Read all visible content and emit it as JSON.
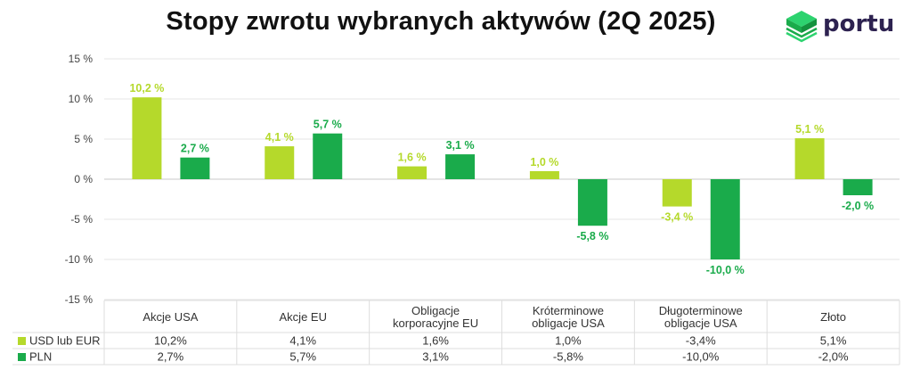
{
  "brand": {
    "name": "portu"
  },
  "chart_data": {
    "type": "bar",
    "title": "Stopy zwrotu wybranych aktywów (2Q 2025)",
    "categories": [
      "Akcje USA",
      "Akcje EU",
      "Obligacje korporacyjne EU",
      "Króterminowe obligacje USA",
      "Długoterminowe obligacje USA",
      "Złoto"
    ],
    "category_lines": [
      [
        "Akcje USA"
      ],
      [
        "Akcje EU"
      ],
      [
        "Obligacje",
        "korporacyjne EU"
      ],
      [
        "Króterminowe",
        "obligacje USA"
      ],
      [
        "Długoterminowe",
        "obligacje USA"
      ],
      [
        "Złoto"
      ]
    ],
    "series": [
      {
        "name": "USD lub EUR",
        "color": "#b5d92b",
        "values": [
          10.2,
          4.1,
          1.6,
          1.0,
          -3.4,
          5.1
        ],
        "data_labels": [
          "10,2 %",
          "4,1 %",
          "1,6 %",
          "1,0 %",
          "-3,4 %",
          "5,1 %"
        ],
        "table_values": [
          "10,2%",
          "4,1%",
          "1,6%",
          "1,0%",
          "-3,4%",
          "5,1%"
        ]
      },
      {
        "name": "PLN",
        "color": "#1aab4b",
        "values": [
          2.7,
          5.7,
          3.1,
          -5.8,
          -10.0,
          -2.0
        ],
        "data_labels": [
          "2,7 %",
          "5,7 %",
          "3,1 %",
          "-5,8 %",
          "-10,0 %",
          "-2,0 %"
        ],
        "table_values": [
          "2,7%",
          "5,7%",
          "3,1%",
          "-5,8%",
          "-10,0%",
          "-2,0%"
        ]
      }
    ],
    "ylim": [
      -15,
      15
    ],
    "yticks": [
      15,
      10,
      5,
      0,
      -5,
      -10,
      -15
    ],
    "ytick_labels": [
      "15 %",
      "10 %",
      "5 %",
      "0 %",
      "-5 %",
      "-10 %",
      "-15 %"
    ],
    "grid": true,
    "legend": "data-table-bottom"
  }
}
